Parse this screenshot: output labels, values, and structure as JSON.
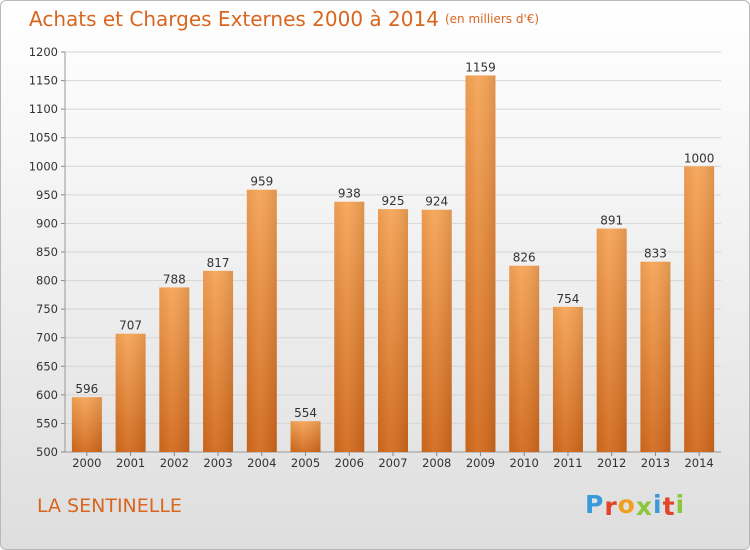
{
  "chart_data": {
    "type": "bar",
    "title": "Achats et Charges Externes 2000 à 2014",
    "unit": "(en milliers d'€)",
    "categories": [
      "2000",
      "2001",
      "2002",
      "2003",
      "2004",
      "2005",
      "2006",
      "2007",
      "2008",
      "2009",
      "2010",
      "2011",
      "2012",
      "2013",
      "2014"
    ],
    "values": [
      596,
      707,
      788,
      817,
      959,
      554,
      938,
      925,
      924,
      1159,
      826,
      754,
      891,
      833,
      1000
    ],
    "ylim": [
      500,
      1200
    ],
    "yticks": [
      500,
      550,
      600,
      650,
      700,
      750,
      800,
      850,
      900,
      950,
      1000,
      1050,
      1100,
      1150,
      1200
    ],
    "grid": true,
    "bar_color_top": "#f6a456",
    "bar_color_bottom": "#d2691c"
  },
  "footer": {
    "location": "LA SENTINELLE",
    "logo_text": "Proxiti"
  },
  "colors": {
    "title": "#d9661f",
    "logo": [
      "#3a9ad9",
      "#e0452b",
      "#f0a020",
      "#8cc63e",
      "#3a9ad9",
      "#e0452b",
      "#8cc63e"
    ]
  }
}
